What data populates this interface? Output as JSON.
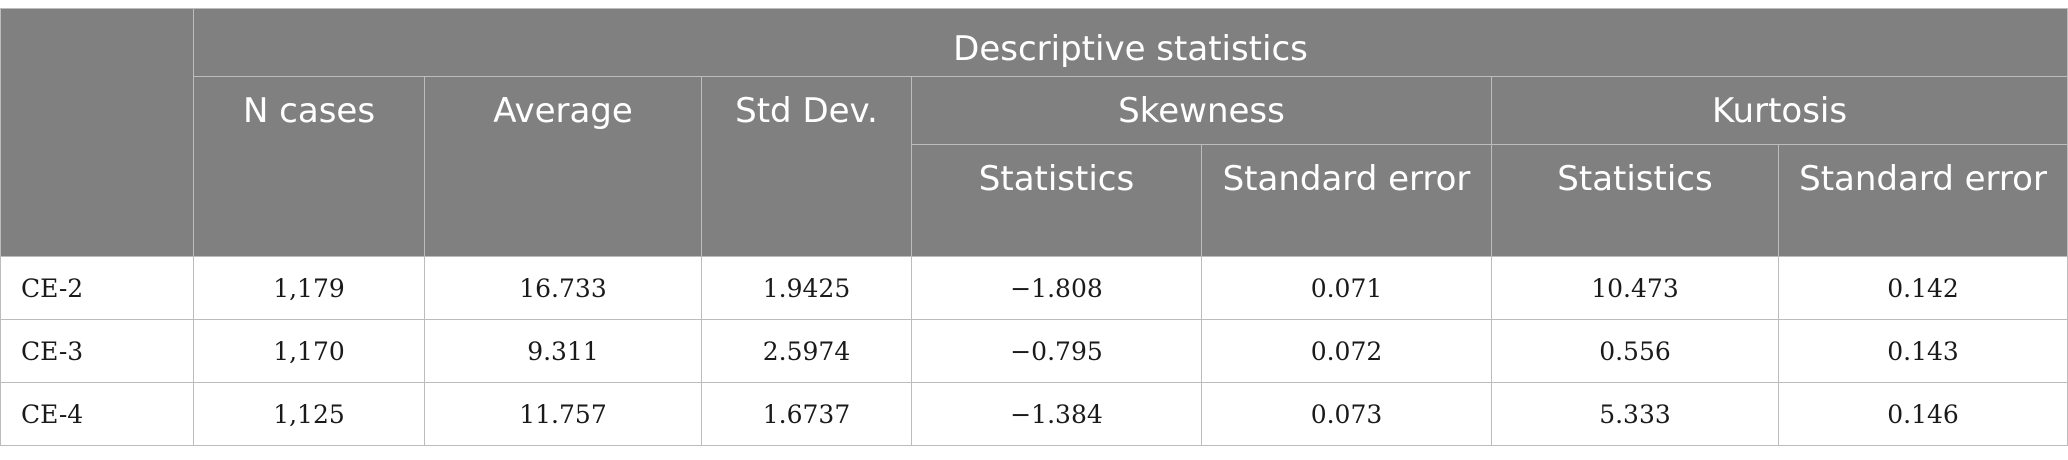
{
  "table": {
    "group_header": "Descriptive statistics",
    "columns": {
      "n_cases": "N cases",
      "average": "Average",
      "std_dev": "Std Dev.",
      "skewness": "Skewness",
      "kurtosis": "Kurtosis",
      "skew_statistics": "Statistics",
      "skew_standard_error": "Standard error",
      "kurt_statistics": "Statistics",
      "kurt_standard_error": "Standard error"
    },
    "rows": [
      {
        "label": "CE-2",
        "n_cases": "1,179",
        "average": "16.733",
        "std_dev": "1.9425",
        "skew_stat": "−1.808",
        "skew_se": "0.071",
        "kurt_stat": "10.473",
        "kurt_se": "0.142"
      },
      {
        "label": "CE-3",
        "n_cases": "1,170",
        "average": "9.311",
        "std_dev": "2.5974",
        "skew_stat": "−0.795",
        "skew_se": "0.072",
        "kurt_stat": "0.556",
        "kurt_se": "0.143"
      },
      {
        "label": "CE-4",
        "n_cases": "1,125",
        "average": "11.757",
        "std_dev": "1.6737",
        "skew_stat": "−1.384",
        "skew_se": "0.073",
        "kurt_stat": "5.333",
        "kurt_se": "0.146"
      }
    ]
  },
  "colors": {
    "header_background": "#808080",
    "header_text": "#ffffff",
    "grid_line": "#bcbcbc",
    "body_text": "#1a1a1a"
  }
}
